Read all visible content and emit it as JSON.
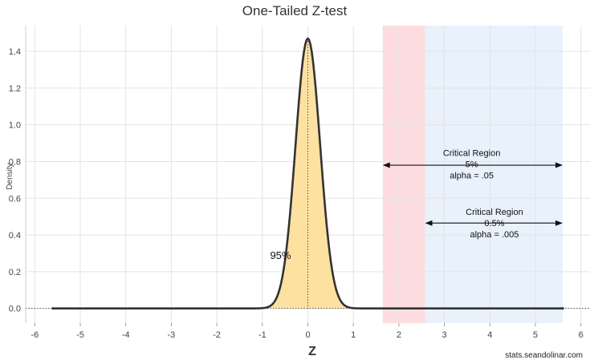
{
  "chart_data": {
    "type": "area",
    "title": "One-Tailed Z-test",
    "xlabel": "Z",
    "ylabel": "Density",
    "xlim": [
      -6.2,
      6.2
    ],
    "ylim": [
      -0.08,
      1.54
    ],
    "x_ticks": [
      -6,
      -5,
      -4,
      -3,
      -2,
      -1,
      0,
      1,
      2,
      3,
      4,
      5,
      6
    ],
    "y_ticks": [
      0.0,
      0.2,
      0.4,
      0.6,
      0.8,
      1.0,
      1.2,
      1.4
    ],
    "y_tick_labels": [
      "0.0",
      "0.2",
      "0.4",
      "0.6",
      "0.8",
      "1.0",
      "1.2",
      "1.4"
    ],
    "grid": true,
    "curve": {
      "distribution": "normal",
      "mean": 0,
      "sd": 0.27,
      "peak": 1.47,
      "x_range": [
        -5.6,
        5.6
      ]
    },
    "regions": [
      {
        "x_start": -5.6,
        "x_end": 1.645,
        "fill_color": "#fde1a1",
        "annotation": "95%",
        "annotation_x": -0.6,
        "annotation_y": 0.27
      },
      {
        "x_start": 1.645,
        "x_end": 2.576,
        "fill_color": "#e06a6c",
        "band_color": "#fddde0"
      },
      {
        "x_start": 2.576,
        "x_end": 5.6,
        "fill_color": "#6d9bc6",
        "band_color": "#e8f1fc"
      }
    ],
    "annotations": [
      {
        "lines": [
          "Critical Region",
          "5%",
          "alpha = .05"
        ],
        "x": 3.6,
        "y": 0.83,
        "arrow_from": 1.645,
        "arrow_to": 5.6,
        "arrow_y": 0.78
      },
      {
        "lines": [
          "Critical Region",
          "0.5%",
          "alpha = .005"
        ],
        "x": 4.1,
        "y": 0.51,
        "arrow_from": 2.576,
        "arrow_to": 5.6,
        "arrow_y": 0.465
      }
    ],
    "credit": "stats.seandolinar.com"
  }
}
